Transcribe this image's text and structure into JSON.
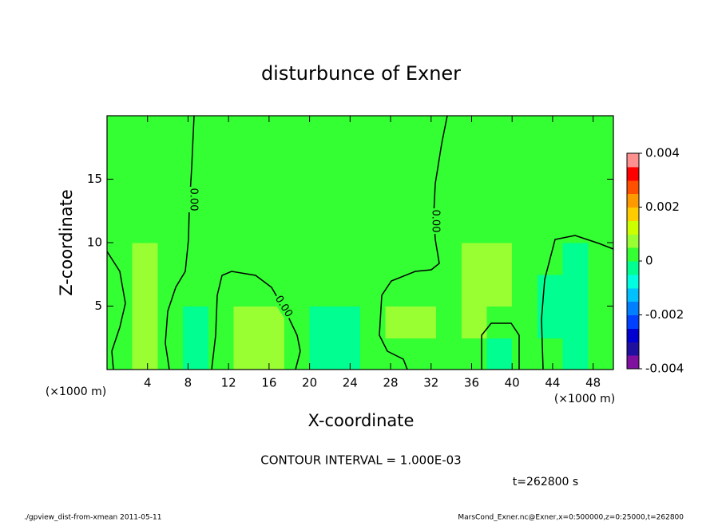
{
  "chart_data": {
    "type": "heatmap",
    "title": "disturbunce of Exner",
    "x_label": "X-coordinate",
    "y_label": "Z-coordinate",
    "x_unit_label": "(×1000 m)",
    "y_unit_label": "(×1000 m)",
    "xlim": [
      0,
      50
    ],
    "xticks": [
      4,
      8,
      12,
      16,
      20,
      24,
      28,
      32,
      36,
      40,
      44,
      48
    ],
    "ylim": [
      0,
      20
    ],
    "yticks": [
      5,
      10,
      15
    ],
    "x": [
      0,
      2.5,
      5,
      7.5,
      10,
      12.5,
      15,
      17.5,
      20,
      22.5,
      25,
      27.5,
      30,
      32.5,
      35,
      37.5,
      40,
      42.5,
      45,
      47.5,
      50
    ],
    "y": [
      0,
      2.5,
      5,
      7.5,
      10,
      12.5,
      15,
      17.5,
      20
    ],
    "values": [
      [
        0.0003,
        0.0007,
        0.0003,
        -0.0002,
        0.0003,
        0.0007,
        0.0006,
        0.0003,
        -0.0002,
        -0.0001,
        0.0003,
        0.0003,
        0.0003,
        0.0003,
        0.0003,
        -0.0002,
        0.0003,
        0.0003,
        -0.0002,
        0.0003
      ],
      [
        0.0003,
        0.0006,
        0.0003,
        -0.0001,
        0.0003,
        0.0006,
        0.0006,
        0.0003,
        -0.0001,
        -0.0001,
        0.0003,
        0.0006,
        0.0006,
        0.0003,
        0.0006,
        0.0003,
        0.0003,
        -0.0001,
        -0.0001,
        0.0003
      ],
      [
        0.0003,
        0.0006,
        0.0003,
        0.0003,
        0.0003,
        0.0003,
        0.0003,
        0.0003,
        0.0003,
        0.0003,
        0.0003,
        0.0003,
        0.0003,
        0.0003,
        0.0006,
        0.0006,
        0.0003,
        -0.0001,
        -0.0001,
        0.0003
      ],
      [
        0.0003,
        0.0006,
        0.0003,
        0.0003,
        0.0003,
        0.0003,
        0.0003,
        0.0003,
        0.0003,
        0.0003,
        0.0003,
        0.0003,
        0.0003,
        0.0003,
        0.0006,
        0.0006,
        0.0003,
        0.0003,
        -0.0001,
        0.0003
      ],
      [
        0.0003,
        0.0003,
        0.0003,
        0.0003,
        0.0003,
        0.0003,
        0.0003,
        0.0003,
        0.0003,
        0.0003,
        0.0003,
        0.0003,
        0.0003,
        0.0003,
        0.0003,
        0.0003,
        0.0003,
        0.0003,
        0.0003,
        0.0003
      ],
      [
        0.0003,
        0.0003,
        0.0003,
        0.0003,
        0.0003,
        0.0003,
        0.0003,
        0.0003,
        0.0003,
        0.0003,
        0.0003,
        0.0003,
        0.0003,
        0.0003,
        0.0003,
        0.0003,
        0.0003,
        0.0003,
        0.0003,
        0.0003
      ],
      [
        0.0003,
        0.0003,
        0.0003,
        0.0003,
        0.0003,
        0.0003,
        0.0003,
        0.0003,
        0.0003,
        0.0003,
        0.0003,
        0.0003,
        0.0003,
        0.0003,
        0.0003,
        0.0003,
        0.0003,
        0.0003,
        0.0003,
        0.0003
      ],
      [
        0.0003,
        0.0003,
        0.0003,
        0.0003,
        0.0003,
        0.0003,
        0.0003,
        0.0003,
        0.0003,
        0.0003,
        0.0003,
        0.0003,
        0.0003,
        0.0003,
        0.0003,
        0.0003,
        0.0003,
        0.0003,
        0.0003,
        0.0003
      ]
    ],
    "clim": [
      -0.004,
      0.004
    ],
    "colors": [
      "#8010a0",
      "#2010a0",
      "#0000d0",
      "#0040ff",
      "#0080ff",
      "#00c0ff",
      "#00ffe0",
      "#00ff90",
      "#33ff33",
      "#99ff33",
      "#ccff00",
      "#ffcc00",
      "#ff9900",
      "#ff5000",
      "#ff0000",
      "#ff9090"
    ],
    "cticks": [
      -0.004,
      -0.002,
      0,
      0.002,
      0.004
    ],
    "contour_labels": [
      "0.00",
      "0.00",
      "0.00"
    ],
    "contour_note": "CONTOUR INTERVAL = 1.000E-03",
    "time_label": "t=262800 s",
    "footer_left": "./gpview_dist-from-xmean  2011-05-11",
    "footer_right": "MarsCond_Exner.nc@Exner,x=0:500000,z=0:25000,t=262800"
  }
}
